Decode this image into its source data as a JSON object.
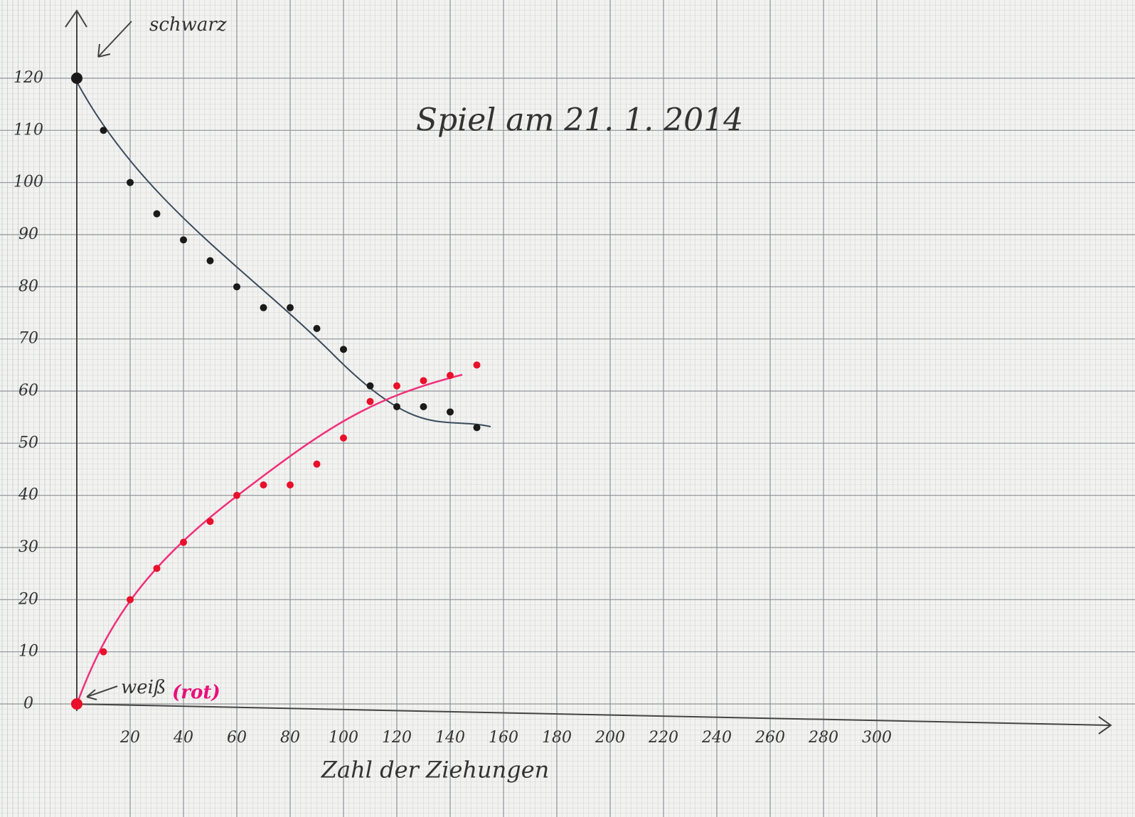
{
  "chart_data": {
    "type": "scatter",
    "title": "Spiel am 21. 1. 2014",
    "x_label": "Zahl der Ziehungen",
    "annotations": [
      "schwarz",
      "weiß",
      "(rot)"
    ],
    "xlim": [
      0,
      300
    ],
    "ylim": [
      0,
      120
    ],
    "xticks": [
      20,
      40,
      60,
      80,
      100,
      120,
      140,
      160,
      180,
      200,
      220,
      240,
      260,
      280,
      300
    ],
    "yticks": [
      0,
      10,
      20,
      30,
      40,
      50,
      60,
      70,
      80,
      90,
      100,
      110,
      120
    ],
    "grid": true,
    "series": [
      {
        "color": "#1a1a1a",
        "x": [
          0,
          10,
          20,
          30,
          40,
          50,
          60,
          70,
          80,
          90,
          100,
          110,
          120,
          130,
          140,
          150
        ],
        "values": [
          120,
          110,
          100,
          94,
          89,
          85,
          80,
          76,
          76,
          72,
          68,
          61,
          57,
          57,
          56,
          53
        ]
      },
      {
        "color": "#e8102a",
        "x": [
          0,
          10,
          20,
          30,
          40,
          50,
          60,
          70,
          80,
          90,
          100,
          110,
          120,
          130,
          140,
          150
        ],
        "values": [
          0,
          10,
          20,
          26,
          31,
          35,
          40,
          42,
          42,
          46,
          51,
          58,
          61,
          62,
          63,
          65
        ]
      }
    ]
  }
}
